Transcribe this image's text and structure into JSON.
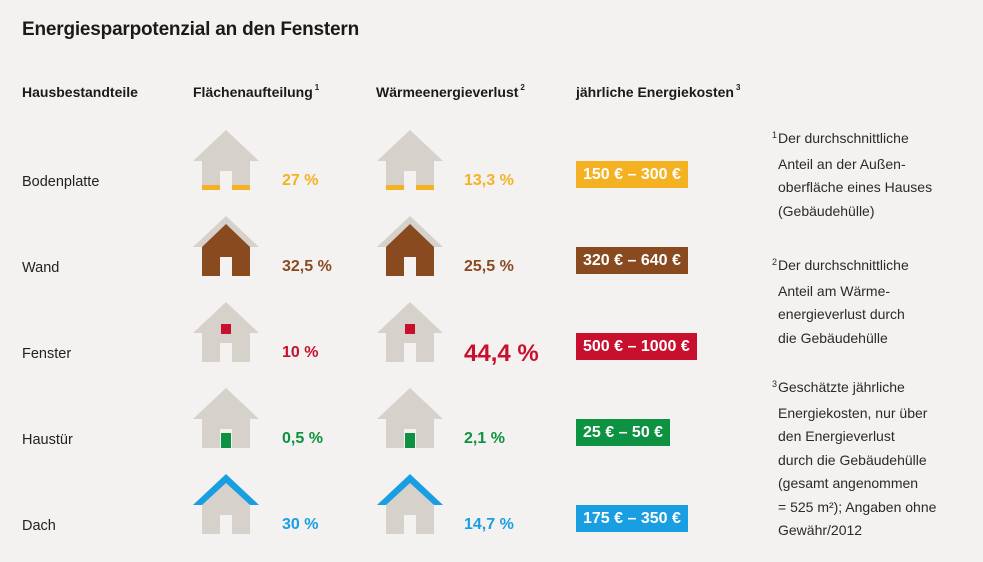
{
  "title": "Energiesparpotenzial an den Fenstern",
  "headers": {
    "component": "Hausbestandteile",
    "area": "Flächenaufteilung",
    "area_sup": "1",
    "loss": "Wärmeenergieverlust",
    "loss_sup": "2",
    "cost": "jährliche Energiekosten",
    "cost_sup": "3"
  },
  "colors": {
    "house_base": "#d6d2cb",
    "bodenplatte": "#f4b223",
    "wand": "#8a4a20",
    "fenster": "#c8102e",
    "haustuer": "#0c9240",
    "dach": "#1a9ee2"
  },
  "rows": [
    {
      "name": "Bodenplatte",
      "area": "27 %",
      "loss": "13,3 %",
      "cost": "150 € – 300 €",
      "icon": "house-floor-icon",
      "color": "#f4b223"
    },
    {
      "name": "Wand",
      "area": "32,5 %",
      "loss": "25,5 %",
      "cost": "320 € – 640 €",
      "icon": "house-wall-icon",
      "color": "#8a4a20"
    },
    {
      "name": "Fenster",
      "area": "10 %",
      "loss": "44,4 %",
      "cost": "500 € – 1000 €",
      "icon": "house-window-icon",
      "color": "#c8102e"
    },
    {
      "name": "Haustür",
      "area": "0,5 %",
      "loss": "2,1 %",
      "cost": "25 € – 50 €",
      "icon": "house-door-icon",
      "color": "#0c9240"
    },
    {
      "name": "Dach",
      "area": "30 %",
      "loss": "14,7 %",
      "cost": "175 € – 350 €",
      "icon": "house-roof-icon",
      "color": "#1a9ee2"
    }
  ],
  "footnotes": [
    {
      "mark": "1",
      "lines": [
        "Der durchschnittliche",
        "Anteil an der Außen-",
        "oberfläche eines Hauses",
        "(Gebäudehülle)"
      ]
    },
    {
      "mark": "2",
      "lines": [
        "Der durchschnittliche",
        "Anteil am Wärme-",
        "energieverlust durch",
        "die Gebäudehülle"
      ]
    },
    {
      "mark": "3",
      "lines": [
        "Geschätzte jährliche",
        "Energiekosten, nur über",
        "den Energieverlust",
        "durch die Gebäudehülle",
        "(gesamt angenommen",
        "= 525 m²); Angaben ohne",
        "Gewähr/2012"
      ]
    }
  ]
}
